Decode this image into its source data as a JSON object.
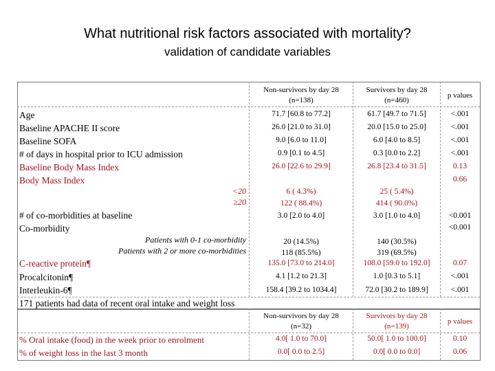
{
  "title": "What nutritional risk factors associated with mortality?",
  "subtitle": "validation of candidate variables",
  "table1": {
    "headers": {
      "non_survivors": "Non-survivors by day 28",
      "non_survivors_n": "(n=138)",
      "survivors": "Survivors by day 28",
      "survivors_n": "(n=460)",
      "pvalues": "p values"
    },
    "rows": [
      {
        "label": "Age",
        "ns": "71.7 [60.8 to 77.2]",
        "s": "61.7 [49.7 to 71.5]",
        "p": "<.001"
      },
      {
        "label": "Baseline APACHE II score",
        "ns": "26.0 [21.0 to 31.0]",
        "s": "20.0 [15.0 to 25.0]",
        "p": "<.001"
      },
      {
        "label": "Baseline SOFA",
        "ns": "9.0 [6.0 to 11.0]",
        "s": "6.0 [4.0 to 8.5]",
        "p": "<.001"
      },
      {
        "label": "# of days in hospital prior to ICU admission",
        "ns": "0.9 [0.1 to 4.5]",
        "s": "0.3 [0.0 to 2.2]",
        "p": "<.001"
      },
      {
        "label": "Baseline Body Mass Index",
        "ns": "26.0 [22.6 to 29.9]",
        "s": "26.8 [23.4 to 31.5]",
        "p": "0.13"
      },
      {
        "label": "Body Mass Index",
        "p": "0.66"
      },
      {
        "label": "<20",
        "ns": "6 ( 4.3%)",
        "s": "25 ( 5.4%)"
      },
      {
        "label": "≥20",
        "ns": "122 ( 88.4%)",
        "s": "414 ( 90.0%)"
      },
      {
        "label": "# of co-morbidities at baseline",
        "ns": "3.0 [2.0 to 4.0]",
        "s": "3.0 [1.0 to 4.0]",
        "p": "<0.001"
      },
      {
        "label": "Co-morbidity",
        "p": "<0.001"
      },
      {
        "label": "Patients with 0-1 co-morbidity",
        "ns": "20 (14.5%)",
        "s": "140 (30.5%)"
      },
      {
        "label": "Patients with 2 or more co-morbidities",
        "ns": "118 (85.5%)",
        "s": "319 (69.5%)"
      },
      {
        "label": "C-reactive protein¶",
        "ns": "135.0 [73.0 to 214.0]",
        "s": "108.0 [59.0 to 192.0]",
        "p": "0.07"
      },
      {
        "label": "Procalcitonin¶",
        "ns": "4.1 [1.2 to 21.3]",
        "s": "1.0 [0.3 to 5.1]",
        "p": "<.001"
      },
      {
        "label": "Interleukin-6¶",
        "ns": "158.4 [39.2 to 1034.4]",
        "s": "72.0 [30.2 to 189.9]",
        "p": "<.001"
      }
    ]
  },
  "note": "171 patients had data of recent oral intake and weight loss",
  "table2": {
    "headers": {
      "non_survivors": "Non-survivors by day 28",
      "non_survivors_n": "(n=32)",
      "survivors": "Survivors by day 28",
      "survivors_n": "(n=139)",
      "pvalues": "p values"
    },
    "rows": [
      {
        "label": "% Oral intake (food) in the week prior to enrolment",
        "ns": "4.0[ 1.0 to 70.0]",
        "s": "50.0[ 1.0 to 100.0]",
        "p": "0.10"
      },
      {
        "label": "% of weight loss in the last 3 month",
        "ns": "0.0[ 0.0 to 2.5]",
        "s": "0.0[ 0.0 to 0.0]",
        "p": "0.06"
      }
    ]
  },
  "colors": {
    "red": "#a0141e",
    "text": "#000000"
  }
}
